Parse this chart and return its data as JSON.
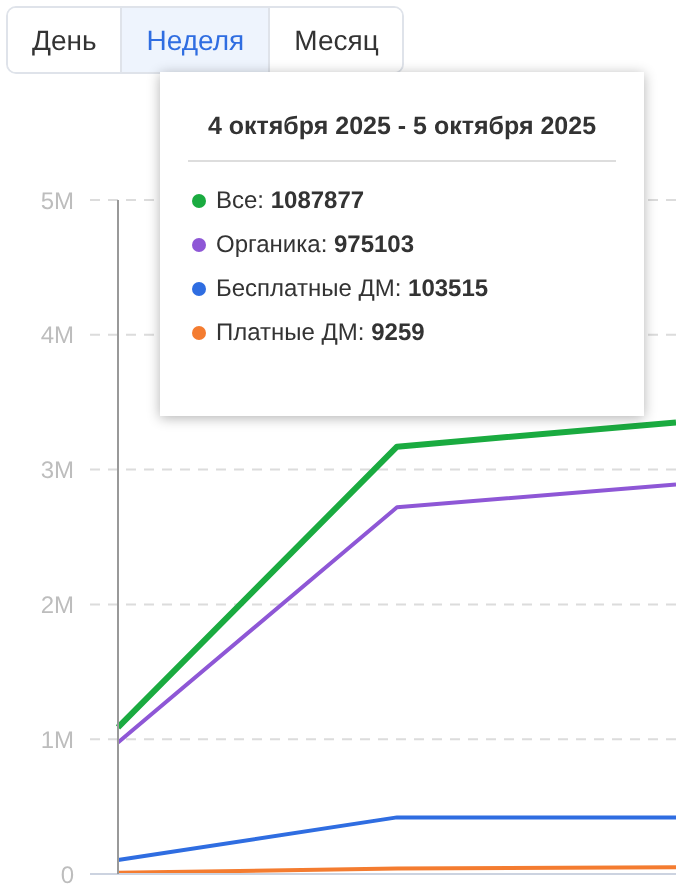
{
  "chart_data": {
    "type": "line",
    "categories": [
      null,
      null,
      null
    ],
    "series": [
      {
        "color": "#1aab40",
        "values": [
          1087877,
          3170000,
          3350000
        ]
      },
      {
        "color": "#8e57d6",
        "values": [
          975103,
          2720000,
          2890000
        ]
      },
      {
        "color": "#2f6de1",
        "values": [
          103515,
          420000,
          420000
        ]
      },
      {
        "color": "#f47c30",
        "values": [
          9259,
          40000,
          50000
        ]
      }
    ],
    "ylim": [
      0,
      5000000
    ],
    "yticks": [
      {
        "value": 0,
        "label": "0"
      },
      {
        "value": 1000000,
        "label": "1M"
      },
      {
        "value": 2000000,
        "label": "2M"
      },
      {
        "value": 3000000,
        "label": "3M"
      },
      {
        "value": 4000000,
        "label": "4M"
      },
      {
        "value": 5000000,
        "label": "5M"
      }
    ],
    "grid": "y",
    "tick_labels": "y",
    "annotations": [
      "День",
      "Неделя",
      "Месяц",
      "4 октября 2025 - 5 октября 2025",
      "Все: 1087877",
      "Органика: 975103",
      "Бесплатные ДМ: 103515",
      "Платные ДМ: 9259"
    ]
  }
}
